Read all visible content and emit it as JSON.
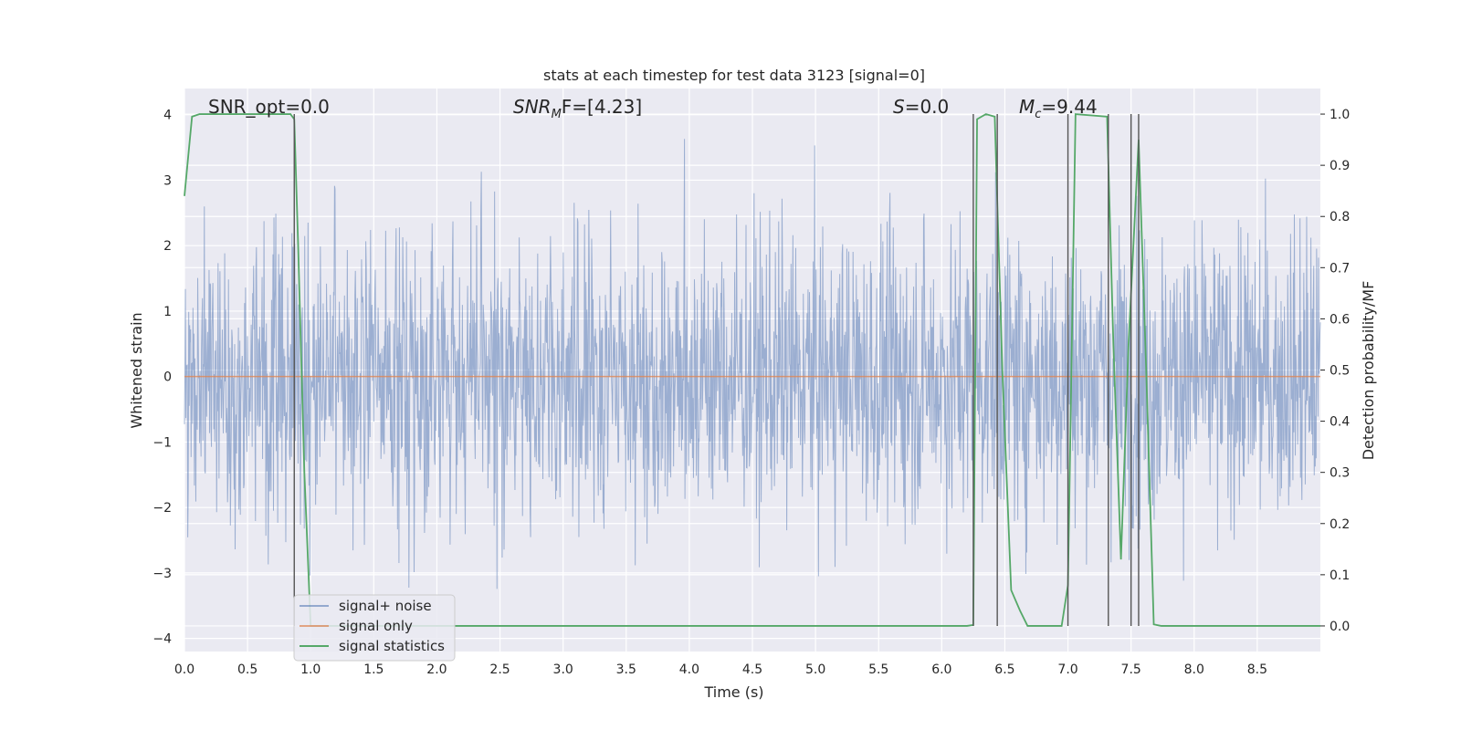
{
  "chart_data": {
    "type": "line",
    "title": "stats at each timestep for test data 3123 [signal=0]",
    "xlabel": "Time (s)",
    "ylabel": "Whitened strain",
    "y2label": "Detection probability/MF",
    "xlim": [
      0.0,
      9.0
    ],
    "ylim": [
      -4.2,
      4.4
    ],
    "y2lim": [
      -0.05,
      1.05
    ],
    "x_ticks": [
      "0.0",
      "0.5",
      "1.0",
      "1.5",
      "2.0",
      "2.5",
      "3.0",
      "3.5",
      "4.0",
      "4.5",
      "5.0",
      "5.5",
      "6.0",
      "6.5",
      "7.0",
      "7.5",
      "8.0",
      "8.5"
    ],
    "y_ticks": [
      "4",
      "3",
      "2",
      "1",
      "0",
      "−1",
      "−2",
      "−3",
      "−4"
    ],
    "y2_ticks": [
      "1.0",
      "0.9",
      "0.8",
      "0.7",
      "0.6",
      "0.5",
      "0.4",
      "0.3",
      "0.2",
      "0.1",
      "0.0"
    ],
    "grid": true,
    "legend_position": "lower-left",
    "annotations": {
      "snr_opt": "SNR_opt=0.0",
      "snr_mf_symbol": "SNR",
      "snr_mf_sub": "M",
      "snr_mf_rest": "F=[4.23]",
      "s_symbol": "S",
      "s_rest": "=0.0",
      "mc_symbol": "M",
      "mc_sub": "c",
      "mc_rest": "=9.44"
    },
    "series": [
      {
        "name": "signal+ noise",
        "color": "#4c72b0",
        "axis": "left",
        "description_of_values": "white noise samples, typical amplitude about ±1.6, peaks up to about ±4",
        "amplitude_envelope": 1.6,
        "peak_range": [
          -3.8,
          4.0
        ]
      },
      {
        "name": "signal only",
        "color": "#dd8452",
        "axis": "left",
        "x": [
          0.0,
          9.0
        ],
        "y": [
          0.0,
          0.0
        ]
      },
      {
        "name": "signal statistics",
        "color": "#55a868",
        "axis": "right",
        "x": [
          0.0,
          0.06,
          0.12,
          0.5,
          0.84,
          0.87,
          0.9,
          0.95,
          1.0,
          6.2,
          6.25,
          6.28,
          6.35,
          6.42,
          6.48,
          6.55,
          6.62,
          6.68,
          6.95,
          7.0,
          7.06,
          7.31,
          7.36,
          7.42,
          7.48,
          7.56,
          7.62,
          7.68,
          7.74,
          9.0
        ],
        "y": [
          0.84,
          0.995,
          1.0,
          1.0,
          1.0,
          0.99,
          0.75,
          0.3,
          0.0,
          0.0,
          0.002,
          0.99,
          1.0,
          0.995,
          0.5,
          0.07,
          0.03,
          0.0,
          0.0,
          0.08,
          1.0,
          0.995,
          0.55,
          0.13,
          0.55,
          0.95,
          0.5,
          0.003,
          0.0,
          0.0
        ]
      }
    ],
    "vertical_lines_x": [
      0.87,
      6.25,
      6.44,
      7.0,
      7.32,
      7.5,
      7.56
    ]
  }
}
